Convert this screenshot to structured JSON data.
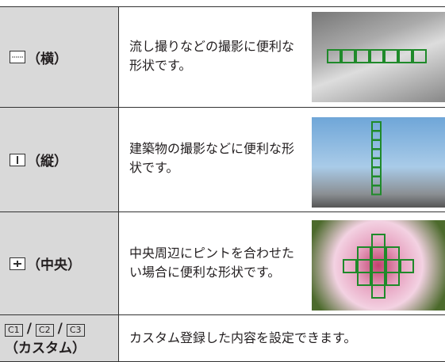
{
  "table": {
    "rows": [
      {
        "label": "（横）",
        "description": "流し撮りなどの撮影に便利な形状です。"
      },
      {
        "label": "（縦）",
        "description": "建築物の撮影などに便利な形状です。"
      },
      {
        "label": "（中央）",
        "description": "中央周辺にピントを合わせたい場合に便利な形状です。"
      },
      {
        "icons": [
          "C1",
          "C2",
          "C3"
        ],
        "separator": "/",
        "label": "（カスタム）",
        "description": "カスタム登録した内容を設定できます。"
      }
    ]
  }
}
